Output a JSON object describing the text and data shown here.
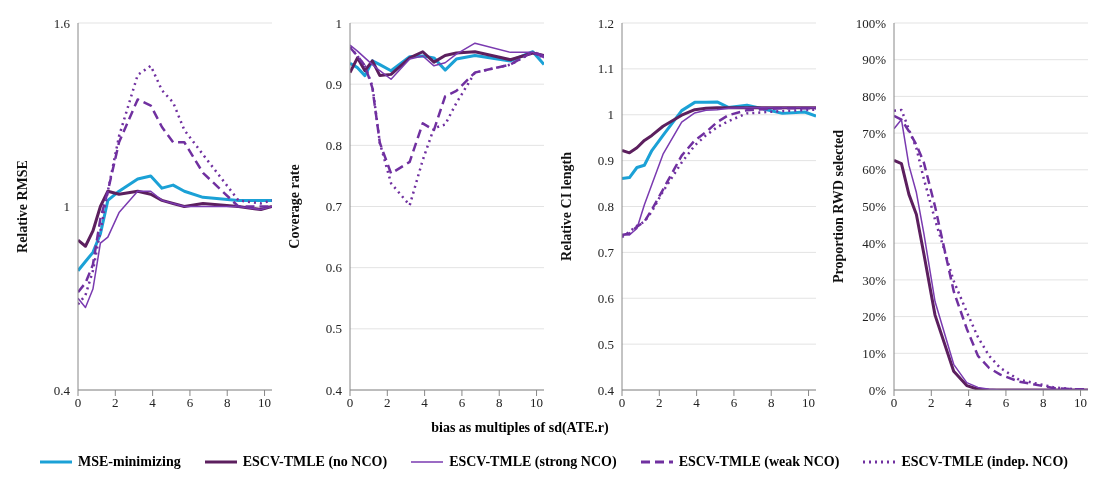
{
  "chart_data": [
    {
      "type": "line",
      "ylabel": "Relative RMSE",
      "legend": "bottom",
      "grid": "y",
      "x": [
        0,
        0.4,
        0.8,
        1.2,
        1.6,
        2.2,
        3.2,
        3.9,
        4.5,
        5.1,
        5.7,
        6.7,
        8.6,
        9.8,
        10.4
      ],
      "xlim": [
        0,
        10.4
      ],
      "xticks": [
        0,
        2,
        4,
        6,
        8,
        10
      ],
      "ylim": [
        0.4,
        1.6
      ],
      "yticks": [
        0.4,
        1,
        1.6
      ],
      "series": [
        {
          "name": "MSE-minimizing",
          "color": "#1ba1d6",
          "line_style": "solid",
          "values": [
            0.79,
            0.82,
            0.85,
            0.91,
            1.02,
            1.05,
            1.09,
            1.1,
            1.06,
            1.07,
            1.05,
            1.03,
            1.02,
            1.02,
            1.02
          ]
        },
        {
          "name": "ESCV-TMLE (no NCO)",
          "color": "#5c1f5e",
          "line_style": "solid",
          "values": [
            0.89,
            0.87,
            0.92,
            1.0,
            1.05,
            1.04,
            1.05,
            1.04,
            1.02,
            1.01,
            1.0,
            1.01,
            1.0,
            0.99,
            1.0
          ]
        },
        {
          "name": "ESCV-TMLE (strong NCO)",
          "color": "#7a3ab0",
          "line_style": "solid",
          "values": [
            0.7,
            0.67,
            0.73,
            0.88,
            0.9,
            0.98,
            1.05,
            1.05,
            1.02,
            1.01,
            1.0,
            1.0,
            1.0,
            0.99,
            1.0
          ]
        },
        {
          "name": "ESCV-TMLE (weak NCO)",
          "color": "#7030a0",
          "line_style": "dashed",
          "values": [
            0.72,
            0.75,
            0.81,
            0.96,
            1.05,
            1.21,
            1.35,
            1.33,
            1.26,
            1.21,
            1.21,
            1.11,
            1.0,
            1.0,
            1.0
          ]
        },
        {
          "name": "ESCV-TMLE (indep. NCO)",
          "color": "#7030a0",
          "line_style": "dotted",
          "values": [
            0.68,
            0.71,
            0.79,
            0.92,
            1.05,
            1.23,
            1.43,
            1.46,
            1.38,
            1.34,
            1.25,
            1.17,
            1.02,
            1.01,
            1.02
          ]
        }
      ]
    },
    {
      "type": "line",
      "ylabel": "Coverage rate",
      "xlabel": "bias as multiples of sd(ATE.r)",
      "grid": "y",
      "x": [
        0,
        0.4,
        0.8,
        1.2,
        1.6,
        2.2,
        3.2,
        3.9,
        4.5,
        5.1,
        5.7,
        6.7,
        8.6,
        9.8,
        10.4
      ],
      "xlim": [
        0,
        10.4
      ],
      "xticks": [
        0,
        2,
        4,
        6,
        8,
        10
      ],
      "ylim": [
        0.4,
        1
      ],
      "yticks": [
        0.4,
        0.5,
        0.6,
        0.7,
        0.8,
        0.9,
        1
      ],
      "series": [
        {
          "name": "MSE-minimizing",
          "color": "#1ba1d6",
          "line_style": "solid",
          "values": [
            0.934,
            0.927,
            0.914,
            0.938,
            0.932,
            0.922,
            0.945,
            0.946,
            0.943,
            0.923,
            0.941,
            0.947,
            0.938,
            0.953,
            0.932
          ]
        },
        {
          "name": "ESCV-TMLE (no NCO)",
          "color": "#5c1f5e",
          "line_style": "solid",
          "values": [
            0.919,
            0.943,
            0.922,
            0.938,
            0.914,
            0.916,
            0.943,
            0.953,
            0.936,
            0.947,
            0.951,
            0.953,
            0.94,
            0.951,
            0.947
          ]
        },
        {
          "name": "ESCV-TMLE (strong NCO)",
          "color": "#7a3ab0",
          "line_style": "solid",
          "values": [
            0.964,
            0.954,
            0.943,
            0.932,
            0.922,
            0.908,
            0.941,
            0.946,
            0.93,
            0.935,
            0.949,
            0.967,
            0.952,
            0.952,
            0.943
          ]
        },
        {
          "name": "ESCV-TMLE (weak NCO)",
          "color": "#7030a0",
          "line_style": "dashed",
          "values": [
            0.96,
            0.946,
            0.93,
            0.894,
            0.804,
            0.754,
            0.773,
            0.836,
            0.825,
            0.88,
            0.889,
            0.919,
            0.932,
            0.953,
            0.946
          ]
        },
        {
          "name": "ESCV-TMLE (indep. NCO)",
          "color": "#7030a0",
          "line_style": "dotted",
          "values": [
            0.961,
            0.946,
            0.93,
            0.897,
            0.804,
            0.738,
            0.702,
            0.776,
            0.828,
            0.834,
            0.869,
            0.919,
            0.932,
            0.952,
            0.943
          ]
        }
      ]
    },
    {
      "type": "line",
      "ylabel": "Relative CI length",
      "grid": "y",
      "x": [
        0,
        0.4,
        0.8,
        1.2,
        1.6,
        2.2,
        3.2,
        3.9,
        4.5,
        5.1,
        5.7,
        6.7,
        8.6,
        9.8,
        10.4
      ],
      "xlim": [
        0,
        10.4
      ],
      "xticks": [
        0,
        2,
        4,
        6,
        8,
        10
      ],
      "ylim": [
        0.4,
        1.2
      ],
      "yticks": [
        0.4,
        0.5,
        0.6,
        0.7,
        0.8,
        0.9,
        1,
        1.1,
        1.2
      ],
      "series": [
        {
          "name": "MSE-minimizing",
          "color": "#1ba1d6",
          "line_style": "solid",
          "values": [
            0.861,
            0.863,
            0.885,
            0.89,
            0.922,
            0.955,
            1.009,
            1.027,
            1.027,
            1.028,
            1.016,
            1.021,
            1.003,
            1.006,
            0.997
          ]
        },
        {
          "name": "ESCV-TMLE (no NCO)",
          "color": "#5c1f5e",
          "line_style": "solid",
          "values": [
            0.922,
            0.917,
            0.928,
            0.944,
            0.955,
            0.975,
            0.999,
            1.011,
            1.014,
            1.015,
            1.015,
            1.015,
            1.015,
            1.015,
            1.015
          ]
        },
        {
          "name": "ESCV-TMLE (strong NCO)",
          "color": "#7a3ab0",
          "line_style": "solid",
          "values": [
            0.739,
            0.738,
            0.752,
            0.804,
            0.848,
            0.914,
            0.984,
            1.004,
            1.01,
            1.011,
            1.014,
            1.015,
            1.015,
            1.015,
            1.015
          ]
        },
        {
          "name": "ESCV-TMLE (weak NCO)",
          "color": "#7030a0",
          "line_style": "dashed",
          "values": [
            0.738,
            0.741,
            0.756,
            0.767,
            0.793,
            0.837,
            0.911,
            0.944,
            0.962,
            0.984,
            0.999,
            1.01,
            1.014,
            1.014,
            1.014
          ]
        },
        {
          "name": "ESCV-TMLE (indep. NCO)",
          "color": "#7030a0",
          "line_style": "dotted",
          "values": [
            0.733,
            0.745,
            0.758,
            0.767,
            0.789,
            0.833,
            0.896,
            0.933,
            0.955,
            0.973,
            0.986,
            1.003,
            1.008,
            1.01,
            1.011
          ]
        }
      ]
    },
    {
      "type": "line",
      "ylabel": "Proportion RWD selected",
      "grid": "y",
      "x": [
        0,
        0.4,
        0.8,
        1.2,
        1.6,
        2.2,
        3.2,
        3.9,
        4.5,
        5.1,
        5.7,
        6.7,
        8.6,
        9.8,
        10.4
      ],
      "xlim": [
        0,
        10.4
      ],
      "xticks": [
        0,
        2,
        4,
        6,
        8,
        10
      ],
      "ylim": [
        0,
        100
      ],
      "yticks": [
        {
          "value": 0,
          "label": "0%"
        },
        {
          "value": 10,
          "label": "10%"
        },
        {
          "value": 20,
          "label": "20%"
        },
        {
          "value": 30,
          "label": "30%"
        },
        {
          "value": 40,
          "label": "40%"
        },
        {
          "value": 50,
          "label": "50%"
        },
        {
          "value": 60,
          "label": "60%"
        },
        {
          "value": 70,
          "label": "70%"
        },
        {
          "value": 80,
          "label": "80%"
        },
        {
          "value": 90,
          "label": "90%"
        },
        {
          "value": 100,
          "label": "100%"
        }
      ],
      "series": [
        {
          "name": "MSE-minimizing",
          "color": "#1ba1d6",
          "line_style": "solid",
          "values": [
            null,
            null,
            null,
            null,
            null,
            null,
            null,
            null,
            null,
            null,
            null,
            null,
            null,
            null,
            null
          ]
        },
        {
          "name": "ESCV-TMLE (no NCO)",
          "color": "#5c1f5e",
          "line_style": "solid",
          "values": [
            62.6,
            61.7,
            53.3,
            47.8,
            37.1,
            20.4,
            5.1,
            1.2,
            0.2,
            0,
            0,
            0,
            0,
            0,
            0
          ]
        },
        {
          "name": "ESCV-TMLE (strong NCO)",
          "color": "#7a3ab0",
          "line_style": "solid",
          "values": [
            71.2,
            73.7,
            61.2,
            53.8,
            42.7,
            24.1,
            7,
            2,
            0.7,
            0.2,
            0,
            0,
            0,
            0,
            0
          ]
        },
        {
          "name": "ESCV-TMLE (weak NCO)",
          "color": "#7030a0",
          "line_style": "dashed",
          "values": [
            74.7,
            73.7,
            70.5,
            66.8,
            62,
            50,
            26.9,
            16.7,
            9.3,
            6,
            4.2,
            2.3,
            0.5,
            0.2,
            0.2
          ]
        },
        {
          "name": "ESCV-TMLE (indep. NCO)",
          "color": "#7030a0",
          "line_style": "dotted",
          "values": [
            76.1,
            76.3,
            71,
            65.9,
            57.5,
            46.4,
            29.7,
            21.3,
            14.4,
            9.3,
            6,
            2.8,
            0.7,
            0.2,
            0.2
          ]
        }
      ]
    }
  ]
}
